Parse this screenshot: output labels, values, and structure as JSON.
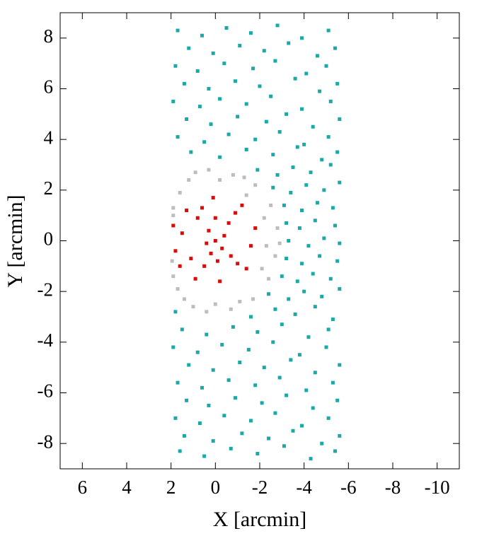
{
  "chart_data": {
    "type": "scatter",
    "x_label": "X [arcmin]",
    "y_label": "Y [arcmin]",
    "xlim": [
      7,
      -11
    ],
    "ylim": [
      -9,
      9
    ],
    "xticks": [
      6,
      4,
      2,
      0,
      -2,
      -4,
      -6,
      -8,
      -10
    ],
    "yticks": [
      8,
      6,
      4,
      2,
      0,
      -2,
      -4,
      -6,
      -8
    ],
    "series": [
      {
        "color": "#1aa9a6",
        "x": [
          1.7,
          0.6,
          -0.5,
          -1.6,
          -2.8,
          -3.9,
          -5.1,
          1.2,
          0.1,
          -1.1,
          -2.2,
          -3.3,
          -4.6,
          -5.4,
          1.8,
          0.8,
          -0.4,
          -1.7,
          -2.7,
          -4.1,
          -5.0,
          1.4,
          0.3,
          -0.9,
          -2.0,
          -3.6,
          -4.7,
          -5.5,
          1.9,
          0.7,
          -0.2,
          -1.4,
          -2.5,
          -3.9,
          -5.2,
          1.3,
          0.2,
          -1.0,
          -2.3,
          -3.2,
          -4.4,
          -5.6,
          1.7,
          0.5,
          -0.6,
          -1.8,
          -2.9,
          -4.0,
          -5.1,
          1.1,
          -0.2,
          -1.4,
          -2.6,
          -3.7,
          -4.8,
          -5.5,
          -1.9,
          -2.8,
          -3.5,
          -4.3,
          -5.2,
          -2.6,
          -3.4,
          -4.1,
          -4.9,
          -5.6,
          -3.1,
          -3.9,
          -4.6,
          -5.3,
          -3.2,
          -3.8,
          -4.5,
          -5.4,
          -3.3,
          -4.2,
          -4.9,
          -5.6,
          -3.2,
          -3.9,
          -4.7,
          -5.5,
          -3.0,
          -3.7,
          -4.4,
          -5.2,
          -2.4,
          -3.3,
          -4.0,
          -4.8,
          -5.6,
          1.8,
          -1.6,
          -2.7,
          -3.6,
          -4.5,
          -5.3,
          1.5,
          0.4,
          -0.8,
          -1.9,
          -3.0,
          -4.2,
          -5.1,
          1.9,
          0.8,
          -0.3,
          -1.5,
          -2.6,
          -3.8,
          -5.0,
          1.2,
          0.1,
          -1.1,
          -2.2,
          -3.4,
          -4.5,
          -5.6,
          1.7,
          0.6,
          -0.6,
          -1.8,
          -2.9,
          -4.1,
          -5.3,
          1.3,
          0.3,
          -0.9,
          -2.1,
          -3.2,
          -4.4,
          -5.5,
          1.8,
          0.7,
          -0.4,
          -1.6,
          -2.7,
          -3.9,
          -5.1,
          1.4,
          0.1,
          -1.2,
          -2.4,
          -3.5,
          -4.8,
          -5.6,
          1.6,
          0.5,
          -0.7,
          -1.9,
          -3.1,
          -4.3,
          -5.4
        ],
        "y": [
          8.3,
          8.1,
          8.4,
          8.2,
          8.5,
          8.0,
          8.3,
          7.6,
          7.4,
          7.7,
          7.5,
          7.8,
          7.3,
          7.6,
          6.9,
          6.7,
          7.0,
          6.8,
          7.1,
          6.6,
          6.9,
          6.2,
          6.0,
          6.3,
          6.1,
          6.4,
          5.9,
          6.2,
          5.5,
          5.3,
          5.6,
          5.4,
          5.7,
          5.2,
          5.5,
          4.8,
          4.6,
          4.9,
          4.7,
          5.0,
          4.5,
          4.8,
          4.1,
          3.9,
          4.2,
          4.0,
          4.3,
          3.8,
          4.1,
          3.5,
          3.3,
          3.6,
          3.4,
          3.7,
          3.2,
          3.5,
          2.8,
          2.6,
          2.9,
          2.7,
          3.0,
          2.1,
          1.9,
          2.2,
          2.0,
          2.3,
          1.4,
          1.2,
          1.5,
          1.3,
          0.7,
          0.5,
          0.8,
          0.6,
          0.0,
          -0.2,
          0.1,
          -0.1,
          -0.7,
          -0.9,
          -0.6,
          -0.8,
          -1.4,
          -1.6,
          -1.3,
          -1.5,
          -2.1,
          -2.3,
          -2.0,
          -2.2,
          -1.9,
          -2.8,
          -3.0,
          -2.7,
          -2.9,
          -2.6,
          -3.1,
          -3.5,
          -3.7,
          -3.4,
          -3.6,
          -3.3,
          -3.8,
          -3.5,
          -4.2,
          -4.4,
          -4.1,
          -4.3,
          -4.0,
          -4.5,
          -4.2,
          -4.9,
          -5.1,
          -4.8,
          -5.0,
          -4.7,
          -5.2,
          -4.9,
          -5.6,
          -5.8,
          -5.5,
          -5.7,
          -5.4,
          -5.9,
          -5.6,
          -6.3,
          -6.5,
          -6.2,
          -6.4,
          -6.1,
          -6.6,
          -6.3,
          -7.0,
          -7.2,
          -6.9,
          -7.1,
          -6.8,
          -7.3,
          -7.0,
          -7.7,
          -7.9,
          -7.6,
          -7.8,
          -7.5,
          -8.0,
          -7.7,
          -8.3,
          -8.5,
          -8.2,
          -8.4,
          -8.1,
          -8.6,
          -8.3
        ]
      },
      {
        "color": "#bdbdbd",
        "x": [
          1.9,
          1.2,
          0.3,
          -0.8,
          -1.8,
          -2.5,
          -2.8,
          -2.7,
          -2.4,
          -1.7,
          -0.7,
          0.4,
          1.4,
          1.9,
          1.9,
          1.95,
          0.9,
          -0.2,
          -1.3,
          -2.2,
          -2.3,
          -2.1,
          -1.1,
          0.0,
          1.0,
          1.7,
          1.6,
          -1.4,
          -2.9
        ],
        "y": [
          1.3,
          2.4,
          2.8,
          2.6,
          2.2,
          1.4,
          0.5,
          -0.6,
          -1.5,
          -2.3,
          -2.7,
          -2.8,
          -2.3,
          -1.4,
          1.0,
          -0.8,
          2.7,
          2.4,
          2.5,
          0.9,
          -0.2,
          -1.1,
          -2.4,
          -2.5,
          -2.6,
          -1.9,
          1.9,
          1.8,
          -0.1
        ]
      },
      {
        "color": "#dd0a0a",
        "x": [
          0,
          0.3,
          -0.4,
          0.2,
          -0.3,
          0.8,
          -0.9,
          1.1,
          -1.0,
          1.5,
          -1.6,
          0.1,
          -0.2,
          1.3,
          -1.2,
          -1.4,
          0.9,
          1.8,
          -0.6,
          0.5,
          -0.7,
          1.9,
          0.6,
          -1.8,
          0.0,
          0.4,
          -0.1,
          1.6
        ],
        "y": [
          0,
          0.4,
          0.2,
          -0.5,
          -0.3,
          0.9,
          1.1,
          -0.7,
          -0.9,
          0.3,
          -0.2,
          1.7,
          -1.6,
          1.2,
          1.4,
          -1.1,
          -1.5,
          -0.4,
          0.7,
          -1.0,
          -0.6,
          0.6,
          1.3,
          0.5,
          0.9,
          -0.1,
          -0.8,
          -1.0
        ]
      }
    ]
  }
}
